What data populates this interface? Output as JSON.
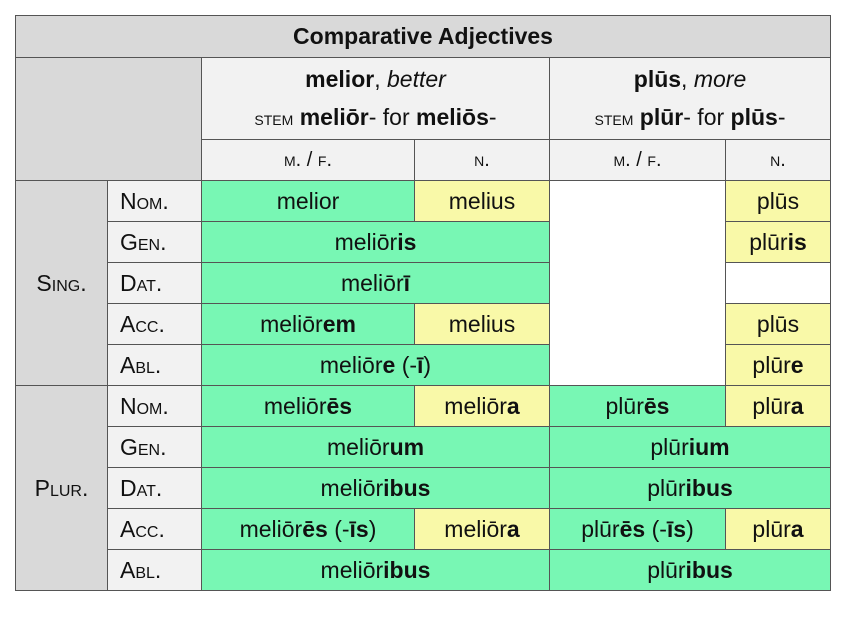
{
  "title": "Comparative Adjectives",
  "headers": [
    {
      "word": "melior",
      "sep": ", ",
      "gloss": "better",
      "stem_label": "stem",
      "stem": "meliōr",
      "mid": "- for ",
      "alt": "meliōs",
      "end": "-"
    },
    {
      "word": "plūs",
      "sep": ", ",
      "gloss": "more",
      "stem_label": "stem",
      "stem": "plūr",
      "mid": "- for ",
      "alt": "plūs",
      "end": "-"
    }
  ],
  "genders": [
    "m. / f.",
    "n.",
    "m. / f.",
    "n."
  ],
  "numbers": [
    "Sing.",
    "Plur."
  ],
  "cases": [
    "Nom.",
    "Gen.",
    "Dat.",
    "Acc.",
    "Abl."
  ],
  "colors": {
    "green": "#78f7b4",
    "yellow": "#f9f9a8",
    "header": "#f2f2f2",
    "title": "#d9d9d9"
  },
  "rows": [
    [
      {
        "span": 1,
        "c": "g",
        "seg": [
          {
            "t": "melior"
          }
        ]
      },
      {
        "span": 1,
        "c": "y",
        "seg": [
          {
            "t": "melius"
          }
        ]
      },
      {
        "span": 1,
        "c": "w",
        "rowspan": 5,
        "seg": []
      },
      {
        "span": 1,
        "c": "y",
        "seg": [
          {
            "t": "plūs"
          }
        ]
      }
    ],
    [
      {
        "span": 2,
        "c": "g",
        "seg": [
          {
            "t": "meliōr"
          },
          {
            "t": "is",
            "b": true
          }
        ]
      },
      {
        "span": 1,
        "c": "y",
        "seg": [
          {
            "t": "plūr"
          },
          {
            "t": "is",
            "b": true
          }
        ]
      }
    ],
    [
      {
        "span": 2,
        "c": "g",
        "seg": [
          {
            "t": "meliōr"
          },
          {
            "t": "ī",
            "b": true
          }
        ]
      },
      {
        "span": 1,
        "c": "w",
        "seg": []
      }
    ],
    [
      {
        "span": 1,
        "c": "g",
        "seg": [
          {
            "t": "meliōr"
          },
          {
            "t": "em",
            "b": true
          }
        ]
      },
      {
        "span": 1,
        "c": "y",
        "seg": [
          {
            "t": "melius"
          }
        ]
      },
      {
        "span": 1,
        "c": "y",
        "seg": [
          {
            "t": "plūs"
          }
        ]
      }
    ],
    [
      {
        "span": 2,
        "c": "g",
        "seg": [
          {
            "t": "meliōr"
          },
          {
            "t": "e",
            "b": true
          },
          {
            "t": " (-"
          },
          {
            "t": "ī",
            "b": true
          },
          {
            "t": ")"
          }
        ]
      },
      {
        "span": 1,
        "c": "y",
        "seg": [
          {
            "t": "plūr"
          },
          {
            "t": "e",
            "b": true
          }
        ]
      }
    ],
    [
      {
        "span": 1,
        "c": "g",
        "seg": [
          {
            "t": "meliōr"
          },
          {
            "t": "ēs",
            "b": true
          }
        ]
      },
      {
        "span": 1,
        "c": "y",
        "seg": [
          {
            "t": "meliōr"
          },
          {
            "t": "a",
            "b": true
          }
        ]
      },
      {
        "span": 1,
        "c": "g",
        "seg": [
          {
            "t": "plūr"
          },
          {
            "t": "ēs",
            "b": true
          }
        ]
      },
      {
        "span": 1,
        "c": "y",
        "seg": [
          {
            "t": "plūr"
          },
          {
            "t": "a",
            "b": true
          }
        ]
      }
    ],
    [
      {
        "span": 2,
        "c": "g",
        "seg": [
          {
            "t": "meliōr"
          },
          {
            "t": "um",
            "b": true
          }
        ]
      },
      {
        "span": 2,
        "c": "g",
        "seg": [
          {
            "t": "plūr"
          },
          {
            "t": "ium",
            "b": true
          }
        ]
      }
    ],
    [
      {
        "span": 2,
        "c": "g",
        "seg": [
          {
            "t": "meliōr"
          },
          {
            "t": "ibus",
            "b": true
          }
        ]
      },
      {
        "span": 2,
        "c": "g",
        "seg": [
          {
            "t": "plūr"
          },
          {
            "t": "ibus",
            "b": true
          }
        ]
      }
    ],
    [
      {
        "span": 1,
        "c": "g",
        "seg": [
          {
            "t": "meliōr"
          },
          {
            "t": "ēs",
            "b": true
          },
          {
            "t": " (-"
          },
          {
            "t": "īs",
            "b": true
          },
          {
            "t": ")"
          }
        ]
      },
      {
        "span": 1,
        "c": "y",
        "seg": [
          {
            "t": "meliōr"
          },
          {
            "t": "a",
            "b": true
          }
        ]
      },
      {
        "span": 1,
        "c": "g",
        "seg": [
          {
            "t": "plūr"
          },
          {
            "t": "ēs",
            "b": true
          },
          {
            "t": " (-"
          },
          {
            "t": "īs",
            "b": true
          },
          {
            "t": ")"
          }
        ]
      },
      {
        "span": 1,
        "c": "y",
        "seg": [
          {
            "t": "plūr"
          },
          {
            "t": "a",
            "b": true
          }
        ]
      }
    ],
    [
      {
        "span": 2,
        "c": "g",
        "seg": [
          {
            "t": "meliōr"
          },
          {
            "t": "ibus",
            "b": true
          }
        ]
      },
      {
        "span": 2,
        "c": "g",
        "seg": [
          {
            "t": "plūr"
          },
          {
            "t": "ibus",
            "b": true
          }
        ]
      }
    ]
  ]
}
